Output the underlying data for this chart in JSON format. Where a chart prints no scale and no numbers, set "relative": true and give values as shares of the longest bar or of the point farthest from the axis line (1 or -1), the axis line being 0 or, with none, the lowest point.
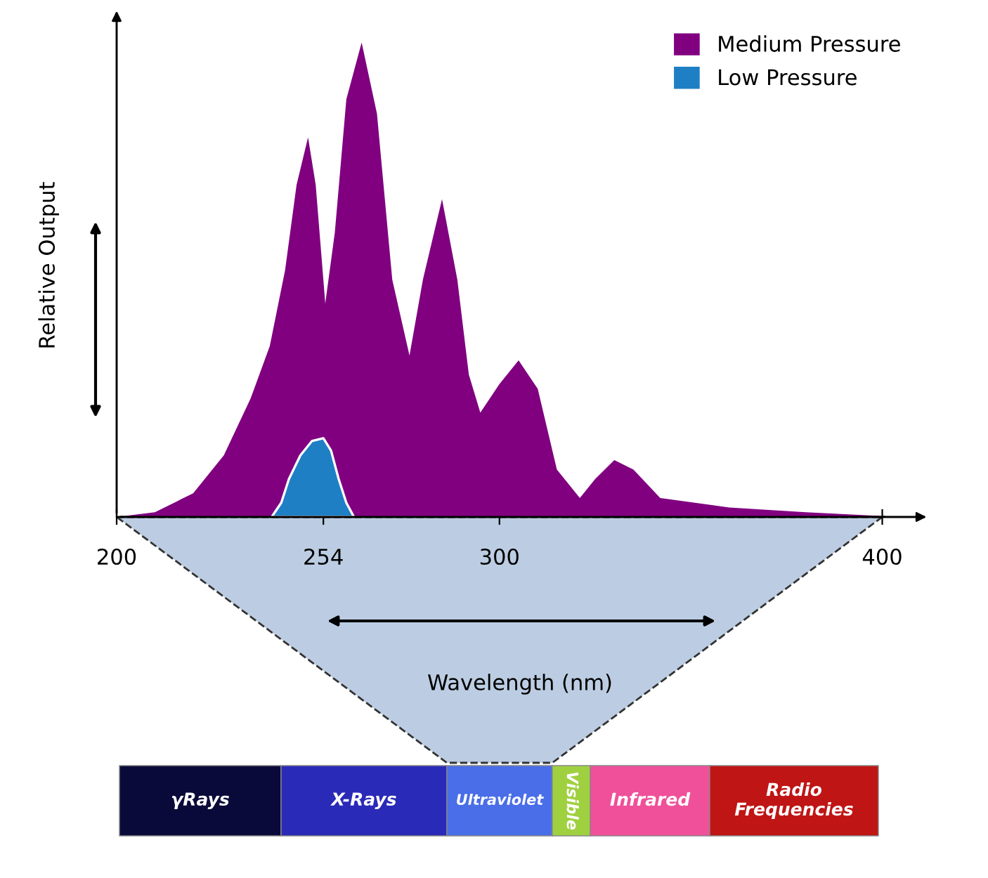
{
  "chart_data": {
    "type": "area",
    "relative": true,
    "ylabel": "Relative Output",
    "xlim": [
      200,
      410
    ],
    "xticks": [
      200,
      254,
      300,
      400
    ],
    "legend": "top right",
    "grid": false,
    "series": [
      {
        "name": "Medium Pressure",
        "color": "#800080",
        "x": [
          200,
          210,
          220,
          228,
          235,
          240,
          244,
          247,
          250,
          252,
          254.5,
          257,
          260,
          264,
          268,
          272,
          276.5,
          280,
          285,
          289,
          292,
          295,
          300,
          305,
          310,
          315,
          321,
          325,
          330,
          335,
          342,
          360,
          380,
          405
        ],
        "values": [
          0,
          0.01,
          0.05,
          0.13,
          0.25,
          0.36,
          0.52,
          0.7,
          0.8,
          0.7,
          0.45,
          0.6,
          0.88,
          1.0,
          0.85,
          0.5,
          0.34,
          0.5,
          0.67,
          0.5,
          0.3,
          0.22,
          0.28,
          0.33,
          0.27,
          0.1,
          0.04,
          0.08,
          0.12,
          0.1,
          0.04,
          0.02,
          0.01,
          0
        ]
      },
      {
        "name": "Low Pressure",
        "color": "#1f7fc4",
        "x": [
          240.5,
          243,
          245,
          248,
          251,
          254,
          256,
          258,
          260,
          262
        ],
        "values": [
          0,
          0.03,
          0.08,
          0.13,
          0.16,
          0.166,
          0.14,
          0.08,
          0.03,
          0
        ]
      }
    ],
    "annotations": [
      "Wavelength (nm)",
      "γRays",
      "X-Rays",
      "Ultraviolet",
      "Visible",
      "Infrared",
      "Radio Frequencies"
    ]
  }
}
